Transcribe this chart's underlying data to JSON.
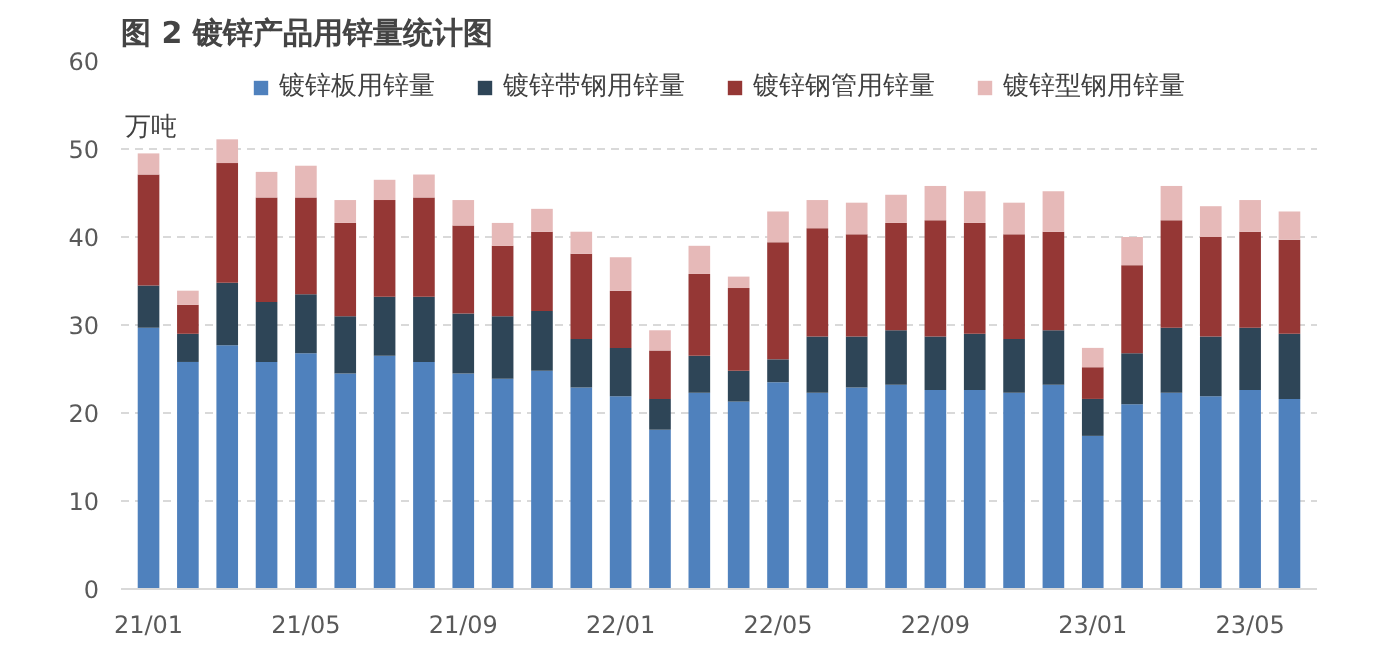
{
  "chart_data": {
    "type": "bar",
    "title": "图 2  镀锌产品用锌量统计图",
    "ylabel": "万吨",
    "stacked": true,
    "categories": [
      "21/01",
      null,
      null,
      null,
      "21/05",
      null,
      null,
      null,
      "21/09",
      null,
      null,
      null,
      "22/01",
      null,
      null,
      null,
      "22/05",
      null,
      null,
      null,
      "22/09",
      null,
      null,
      null,
      "23/01",
      null,
      null,
      null,
      "23/05",
      null
    ],
    "series": [
      {
        "name": "镀锌板用锌量",
        "color": "#4f81bd",
        "values": [
          29.7,
          25.8,
          27.7,
          25.8,
          26.8,
          24.5,
          26.5,
          25.8,
          24.5,
          23.9,
          24.8,
          22.9,
          21.9,
          18.1,
          22.3,
          21.3,
          23.5,
          22.3,
          22.9,
          23.2,
          22.6,
          22.6,
          22.3,
          23.2,
          17.4,
          21.0,
          22.3,
          21.9,
          22.6,
          21.6
        ]
      },
      {
        "name": "镀锌带钢用锌量",
        "color": "#2e4557",
        "values": [
          4.8,
          3.2,
          7.1,
          6.8,
          6.7,
          6.5,
          6.7,
          7.4,
          6.8,
          7.1,
          6.8,
          5.5,
          5.5,
          3.5,
          4.2,
          3.5,
          2.6,
          6.4,
          5.8,
          6.2,
          6.1,
          6.4,
          6.1,
          6.2,
          4.2,
          5.8,
          7.4,
          6.8,
          7.1,
          7.4
        ]
      },
      {
        "name": "镀锌钢管用锌量",
        "color": "#953735",
        "values": [
          12.6,
          3.3,
          13.6,
          11.9,
          11.0,
          10.6,
          11.0,
          11.3,
          10.0,
          8.0,
          9.0,
          9.7,
          6.5,
          5.5,
          9.3,
          9.4,
          13.3,
          12.3,
          11.6,
          12.2,
          13.2,
          12.6,
          11.9,
          11.2,
          3.6,
          10.0,
          12.2,
          11.3,
          10.9,
          10.7
        ]
      },
      {
        "name": "镀锌型钢用锌量",
        "color": "#e6b9b8",
        "values": [
          2.4,
          1.6,
          2.7,
          2.9,
          3.6,
          2.6,
          2.3,
          2.6,
          2.9,
          2.6,
          2.6,
          2.5,
          3.8,
          2.3,
          3.2,
          1.3,
          3.5,
          3.2,
          3.6,
          3.2,
          3.9,
          3.6,
          3.6,
          4.6,
          2.2,
          3.2,
          3.9,
          3.5,
          3.6,
          3.2
        ]
      }
    ],
    "ylim": [
      0,
      60
    ],
    "yticks": [
      0,
      10,
      20,
      30,
      40,
      50,
      60
    ],
    "grid": "y",
    "legend": "top"
  }
}
